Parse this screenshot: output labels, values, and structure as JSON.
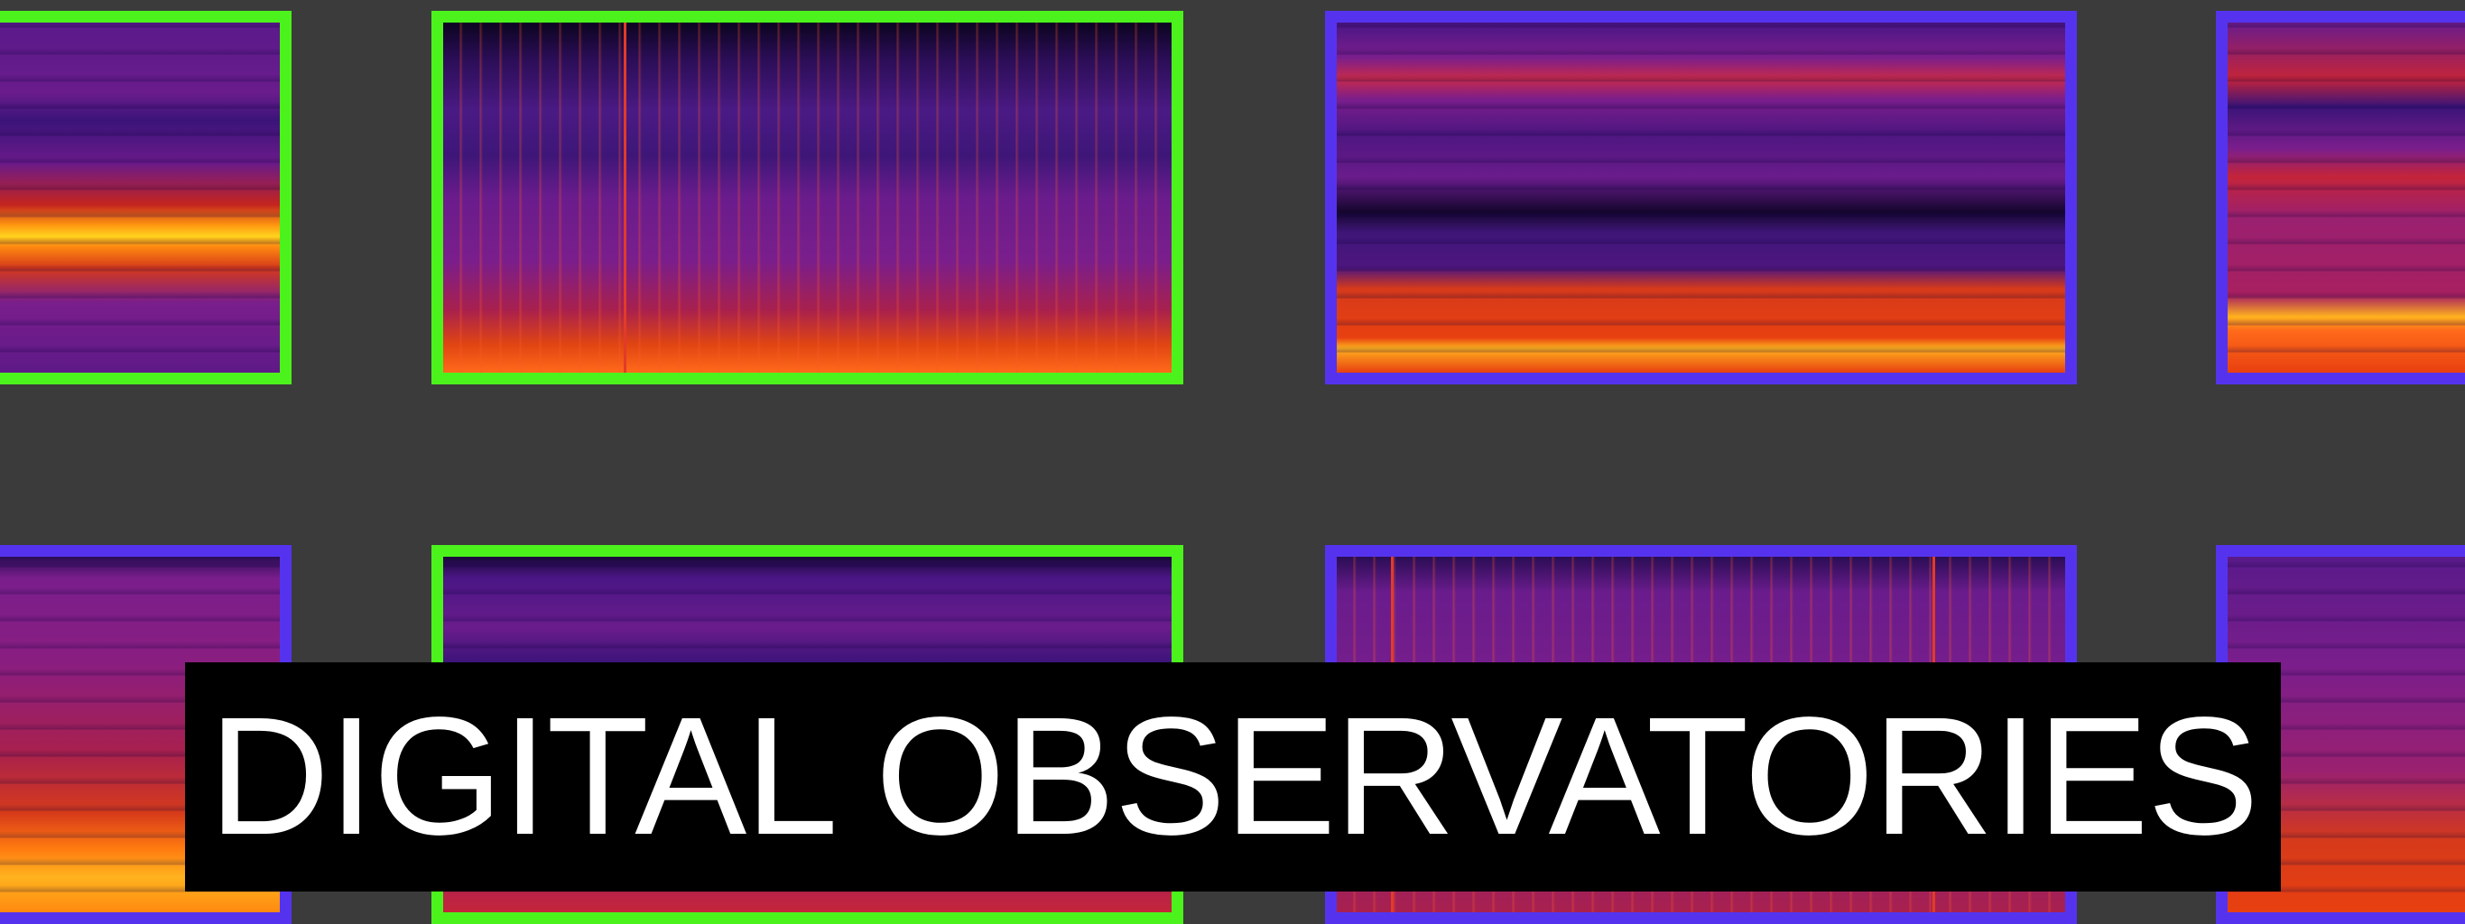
{
  "title": {
    "text": "DIGITAL OBSERVATORIES",
    "background": "#000000",
    "color": "#ffffff"
  },
  "tiles": [
    {
      "border": "green",
      "palette": "spectrogram"
    },
    {
      "border": "green",
      "palette": "spectrogram"
    },
    {
      "border": "blue",
      "palette": "spectrogram"
    },
    {
      "border": "blue",
      "palette": "spectrogram"
    },
    {
      "border": "blue",
      "palette": "spectrogram"
    },
    {
      "border": "green",
      "palette": "spectrogram"
    },
    {
      "border": "blue",
      "palette": "spectrogram"
    },
    {
      "border": "blue",
      "palette": "spectrogram"
    }
  ],
  "colors": {
    "background": "#3b3b3b",
    "green_border": "#4cf21c",
    "blue_border": "#5533ee"
  }
}
